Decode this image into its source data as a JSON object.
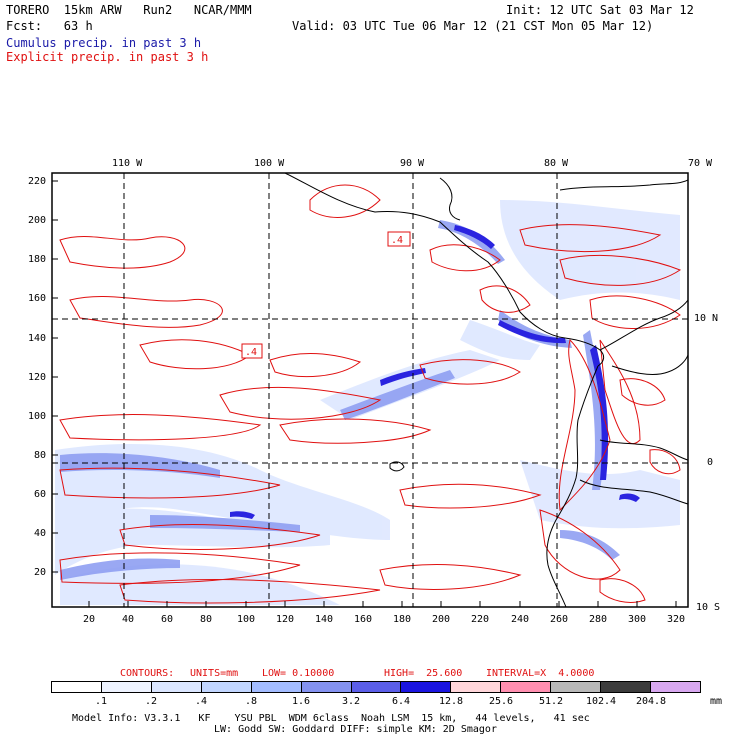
{
  "header": {
    "model": "TORERO  15km ARW   Run2   NCAR/MMM",
    "init": "Init: 12 UTC Sat 03 Mar 12",
    "fcst": "Fcst:   63 h",
    "valid": "Valid: 03 UTC Tue 06 Mar 12 (21 CST Mon 05 Mar 12)",
    "field1": "Cumulus precip. in past 3 h",
    "field2": "Explicit precip. in past 3 h"
  },
  "top_lon_labels": [
    "110 W",
    "100 W",
    "90 W",
    "80 W",
    "70 W"
  ],
  "right_lat_labels": [
    "10 N",
    "0",
    "10 S"
  ],
  "y_ticks": [
    "220",
    "200",
    "180",
    "160",
    "140",
    "120",
    "100",
    "80",
    "60",
    "40",
    "20"
  ],
  "x_ticks": [
    "20",
    "40",
    "60",
    "80",
    "100",
    "120",
    "140",
    "160",
    "180",
    "200",
    "220",
    "240",
    "260",
    "280",
    "300",
    "320"
  ],
  "box_labels": [
    ".4",
    ".4"
  ],
  "contour_info": {
    "label": "CONTOURS:",
    "units": "UNITS=mm",
    "low": "LOW= 0.10000",
    "high": "HIGH=  25.600",
    "interval": "INTERVAL=X  4.0000"
  },
  "colorbar": {
    "colors": [
      "#ffffff",
      "#eef3ff",
      "#dbe6ff",
      "#c2d6ff",
      "#a3bcff",
      "#8492f0",
      "#5b5ee8",
      "#1a14e0",
      "#ffd6da",
      "#ff8fb0",
      "#b8b8b8",
      "#3c3c3c",
      "#d8a8f0"
    ],
    "labels": [
      ".1",
      ".2",
      ".4",
      ".8",
      "1.6",
      "3.2",
      "6.4",
      "12.8",
      "25.6",
      "51.2",
      "102.4",
      "204.8"
    ],
    "unit": "mm"
  },
  "footer": {
    "line1": "Model Info: V3.3.1   KF    YSU PBL  WDM 6class  Noah LSM  15 km,   44 levels,   41 sec",
    "line2": "LW: Godd SW: Goddard DIFF: simple KM: 2D Smagor"
  }
}
